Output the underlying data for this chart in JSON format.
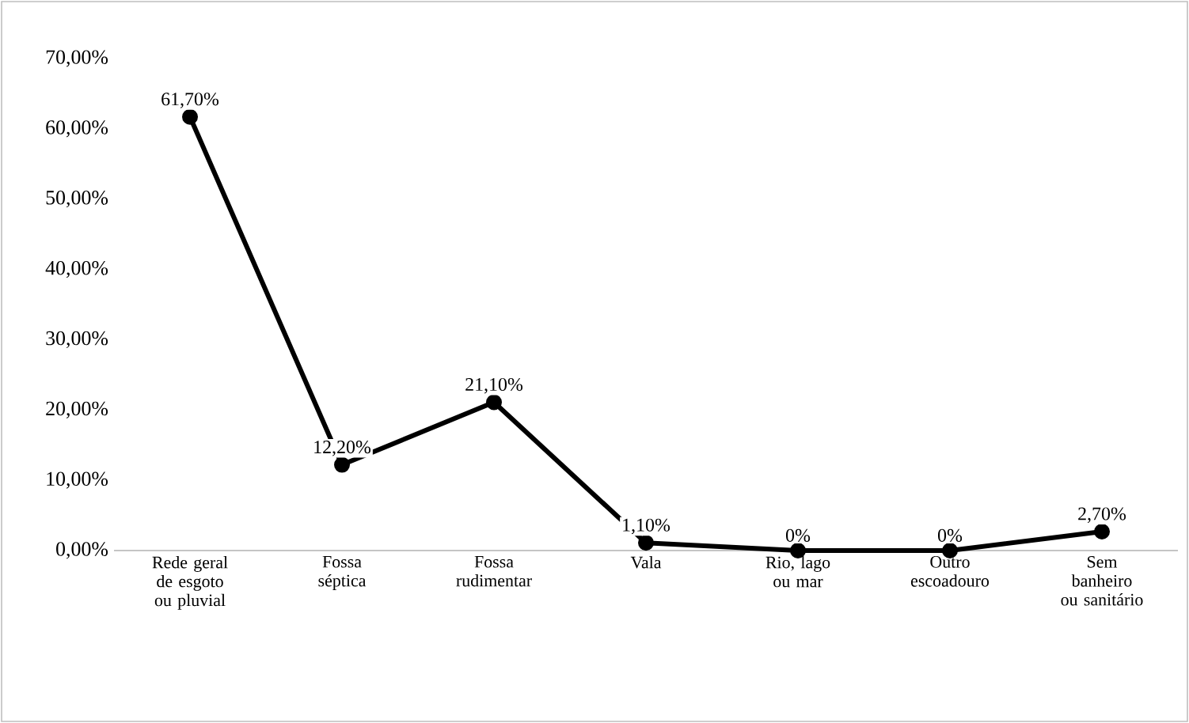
{
  "chart_data": {
    "type": "line",
    "categories": [
      "Rede geral de esgoto ou pluvial",
      "Fossa séptica",
      "Fossa rudimentar",
      "Vala",
      "Rio, lago ou mar",
      "Outro escoadouro",
      "Sem banheiro ou sanitário"
    ],
    "values": [
      61.7,
      12.2,
      21.1,
      1.1,
      0,
      0,
      2.7
    ],
    "value_labels": [
      "61,70%",
      "12,20%",
      "21,10%",
      "1,10%",
      "0%",
      "0%",
      "2,70%"
    ],
    "color": "#000000",
    "marker": "circle",
    "line_style": "solid",
    "grid": false,
    "ylim": [
      0,
      70
    ],
    "yticks": [
      {
        "value": 0,
        "label": "0,00%"
      },
      {
        "value": 10,
        "label": "10,00%"
      },
      {
        "value": 20,
        "label": "20,00%"
      },
      {
        "value": 30,
        "label": "30,00%"
      },
      {
        "value": 40,
        "label": "40,00%"
      },
      {
        "value": 50,
        "label": "50,00%"
      },
      {
        "value": 60,
        "label": "60,00%"
      },
      {
        "value": 70,
        "label": "70,00%"
      }
    ]
  }
}
